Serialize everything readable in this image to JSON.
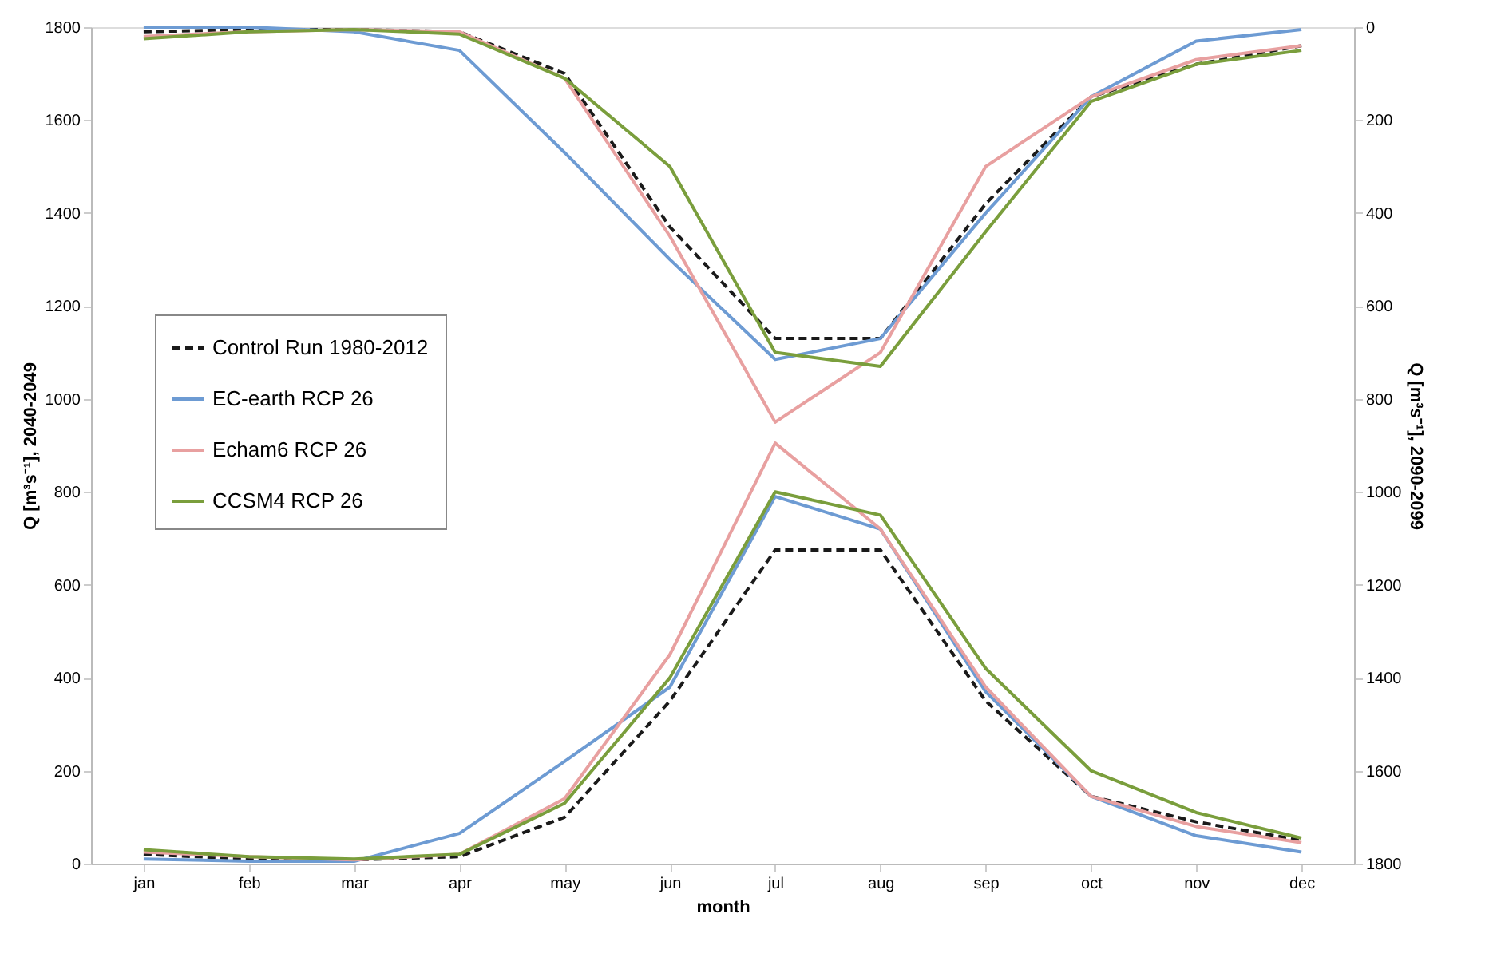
{
  "chart_data": {
    "type": "line",
    "xlabel": "month",
    "ylabel": "Q [m³s⁻¹], 2040-2049",
    "y2label": "Q [m³s⁻¹], 2090-2099",
    "categories": [
      "jan",
      "feb",
      "mar",
      "apr",
      "may",
      "jun",
      "jul",
      "aug",
      "sep",
      "oct",
      "nov",
      "dec"
    ],
    "ylim": [
      0,
      1800
    ],
    "yticks": [
      0,
      200,
      400,
      600,
      800,
      1000,
      1200,
      1400,
      1600,
      1800
    ],
    "y2lim": [
      1800,
      0
    ],
    "y2ticks": [
      0,
      200,
      400,
      600,
      800,
      1000,
      1200,
      1400,
      1600,
      1800
    ],
    "grid": false,
    "legend": "left",
    "marker": "none",
    "series": [
      {
        "name": "Control Run 1980-2012",
        "color": "#1a1a1a",
        "line_style": "dashed",
        "values": [
          20,
          10,
          8,
          15,
          100,
          350,
          675,
          675,
          350,
          145,
          90,
          50
        ]
      },
      {
        "name": "EC-earth RCP 26",
        "color": "#6d9bd3",
        "line_style": "solid",
        "values": [
          10,
          5,
          5,
          65,
          220,
          380,
          790,
          720,
          370,
          145,
          60,
          25
        ]
      },
      {
        "name": "Echam6 RCP 26",
        "color": "#e8a0a0",
        "line_style": "solid",
        "values": [
          25,
          15,
          8,
          20,
          140,
          450,
          905,
          720,
          380,
          145,
          80,
          45
        ]
      },
      {
        "name": "CCSM4 RCP 26",
        "color": "#7a9e3c",
        "line_style": "solid",
        "values": [
          30,
          15,
          10,
          20,
          130,
          400,
          800,
          750,
          420,
          200,
          110,
          55
        ]
      },
      {
        "color": "#1a1a1a",
        "line_style": "dashed",
        "axis": "y2",
        "values": [
          10,
          5,
          5,
          10,
          100,
          430,
          670,
          670,
          380,
          150,
          80,
          40
        ]
      },
      {
        "color": "#6d9bd3",
        "line_style": "solid",
        "axis": "y2",
        "values": [
          0,
          0,
          10,
          50,
          270,
          500,
          715,
          670,
          400,
          150,
          30,
          5
        ]
      },
      {
        "color": "#e8a0a0",
        "line_style": "solid",
        "axis": "y2",
        "values": [
          20,
          10,
          5,
          10,
          110,
          450,
          850,
          700,
          300,
          150,
          70,
          40
        ]
      },
      {
        "color": "#7a9e3c",
        "line_style": "solid",
        "axis": "y2",
        "values": [
          25,
          10,
          5,
          15,
          110,
          300,
          700,
          730,
          440,
          160,
          80,
          50
        ]
      }
    ]
  }
}
